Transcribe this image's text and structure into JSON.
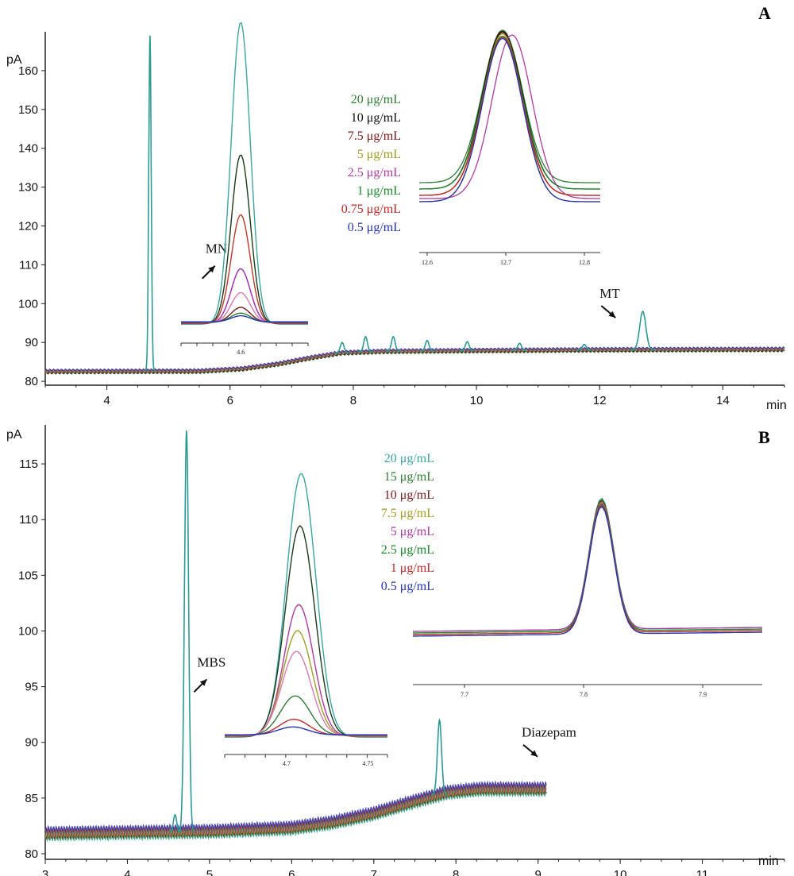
{
  "chart_data": [
    {
      "panel": "A",
      "type": "line",
      "xlabel": "min",
      "ylabel": "pA",
      "xlim": [
        3,
        15
      ],
      "ylim": [
        79,
        170
      ],
      "x_ticks": [
        4,
        6,
        8,
        10,
        12,
        14
      ],
      "y_ticks": [
        80,
        90,
        100,
        110,
        120,
        130,
        140,
        150,
        160
      ],
      "baseline": [
        [
          3.0,
          82.5
        ],
        [
          5.5,
          82.6
        ],
        [
          6.2,
          83.2
        ],
        [
          6.8,
          84.5
        ],
        [
          7.3,
          86
        ],
        [
          7.8,
          87.3
        ],
        [
          8.5,
          87.7
        ],
        [
          10,
          87.9
        ],
        [
          12,
          88.1
        ],
        [
          15,
          88.2
        ]
      ],
      "peaks": [
        {
          "x": 4.7,
          "y": 169,
          "width": 0.02
        },
        {
          "x": 7.82,
          "y": 90.0,
          "width": 0.03
        },
        {
          "x": 8.2,
          "y": 91.5,
          "width": 0.03
        },
        {
          "x": 8.65,
          "y": 91.5,
          "width": 0.03
        },
        {
          "x": 9.2,
          "y": 90.5,
          "width": 0.03
        },
        {
          "x": 9.85,
          "y": 90.2,
          "width": 0.03
        },
        {
          "x": 10.7,
          "y": 89.8,
          "width": 0.03
        },
        {
          "x": 11.75,
          "y": 89.5,
          "width": 0.03
        },
        {
          "x": 12.7,
          "y": 98,
          "width": 0.05
        }
      ],
      "annotations": [
        {
          "text": "MN",
          "x": 5.6,
          "y": 113
        },
        {
          "text": "MT",
          "x": 12.0,
          "y": 101.5
        }
      ],
      "legend": [
        {
          "label": "20 μg/mL",
          "color": "#2e7d32"
        },
        {
          "label": "10 μg/mL",
          "color": "#111111"
        },
        {
          "label": "7.5 μg/mL",
          "color": "#7b1a1a"
        },
        {
          "label": "5 μg/mL",
          "color": "#9e9d24"
        },
        {
          "label": "2.5 μg/mL",
          "color": "#b03aa3"
        },
        {
          "label": "1 μg/mL",
          "color": "#1b8a2a"
        },
        {
          "label": "0.75 μg/mL",
          "color": "#c62828"
        },
        {
          "label": "0.5 μg/mL",
          "color": "#2233bb"
        }
      ],
      "inset1": {
        "x_ticks": [
          "4.6"
        ],
        "peak_heights": [
          1.0,
          0.56,
          0.36,
          0.18,
          0.1,
          0.05,
          0.03,
          0.02
        ],
        "colors": [
          "#3aa6a0",
          "#1a3a1a",
          "#c0392b",
          "#9c27b0",
          "#d87ab0",
          "#7b1a1a",
          "#2e7d32",
          "#2233bb"
        ]
      },
      "inset2": {
        "x_ticks": [
          "12.6",
          "12.7",
          "12.8"
        ]
      }
    },
    {
      "panel": "B",
      "type": "line",
      "xlabel": "min",
      "ylabel": "pA",
      "xlim": [
        3,
        12
      ],
      "ylim": [
        79.5,
        118.5
      ],
      "x_ticks": [
        3,
        4,
        5,
        6,
        7,
        8,
        9,
        10,
        11
      ],
      "y_ticks": [
        80,
        85,
        90,
        95,
        100,
        105,
        110,
        115
      ],
      "baseline": [
        [
          3.0,
          81.8
        ],
        [
          5.0,
          82.0
        ],
        [
          6.0,
          82.3
        ],
        [
          6.5,
          82.8
        ],
        [
          7.0,
          83.6
        ],
        [
          7.5,
          84.7
        ],
        [
          7.9,
          85.5
        ],
        [
          8.3,
          85.8
        ],
        [
          9.1,
          85.8
        ]
      ],
      "peaks": [
        {
          "x": 4.58,
          "y": 83.5,
          "width": 0.02
        },
        {
          "x": 4.72,
          "y": 118,
          "width": 0.025
        },
        {
          "x": 7.8,
          "y": 92,
          "width": 0.025
        }
      ],
      "annotations": [
        {
          "text": "MBS",
          "x": 4.85,
          "y": 96.8
        },
        {
          "text": "Diazepam",
          "x": 8.8,
          "y": 90.5
        }
      ],
      "legend": [
        {
          "label": "20 μg/mL",
          "color": "#3aa6a0"
        },
        {
          "label": "15 μg/mL",
          "color": "#2e7d32"
        },
        {
          "label": "10 μg/mL",
          "color": "#7b1a1a"
        },
        {
          "label": "7.5 μg/mL",
          "color": "#9e9d24"
        },
        {
          "label": "5 μg/mL",
          "color": "#b03aa3"
        },
        {
          "label": "2.5 μg/mL",
          "color": "#1b8a2a"
        },
        {
          "label": "1 μg/mL",
          "color": "#c62828"
        },
        {
          "label": "0.5 μg/mL",
          "color": "#2233bb"
        }
      ],
      "inset1": {
        "x_ticks": [
          "4.7",
          "4.75"
        ],
        "peak_heights": [
          1.0,
          0.8,
          0.5,
          0.4,
          0.32,
          0.15,
          0.06,
          0.03
        ],
        "colors": [
          "#3aa6a0",
          "#1a3a1a",
          "#b03aa3",
          "#9e9d24",
          "#d87ab0",
          "#2e7d32",
          "#c62828",
          "#2233bb"
        ]
      },
      "inset2": {
        "x_ticks": [
          "7.7",
          "7.8",
          "7.9"
        ]
      }
    }
  ]
}
